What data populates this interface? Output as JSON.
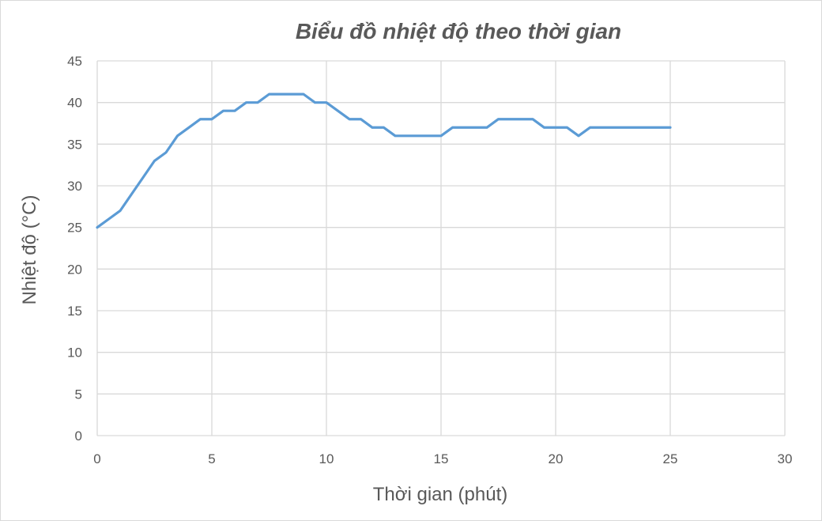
{
  "chart_data": {
    "type": "scatter",
    "title": "Biểu đồ nhiệt độ theo thời gian",
    "xlabel": "Thời gian (phút)",
    "ylabel": "Nhiệt độ (°C)",
    "xlim": [
      0,
      30
    ],
    "ylim": [
      0,
      45
    ],
    "x_ticks": [
      0,
      5,
      10,
      15,
      20,
      25,
      30
    ],
    "y_ticks": [
      0,
      5,
      10,
      15,
      20,
      25,
      30,
      35,
      40,
      45
    ],
    "grid": true,
    "legend": false,
    "line_style": "straight lines, no markers",
    "series_color": "#5b9bd5",
    "series": [
      {
        "x": [
          0,
          0.5,
          1,
          1.5,
          2,
          2.5,
          3,
          3.5,
          4,
          4.5,
          5,
          5.5,
          6,
          6.5,
          7,
          7.5,
          8,
          8.5,
          9,
          9.5,
          10,
          10.5,
          11,
          11.5,
          12,
          12.5,
          13,
          13.5,
          14,
          14.5,
          15,
          15.5,
          16,
          16.5,
          17,
          17.5,
          18,
          18.5,
          19,
          19.5,
          20,
          20.5,
          21,
          21.5,
          22,
          22.5,
          23,
          23.5,
          24,
          24.5,
          25
        ],
        "y": [
          25,
          26,
          27,
          29,
          31,
          33,
          34,
          36,
          37,
          38,
          38,
          39,
          39,
          40,
          40,
          41,
          41,
          41,
          41,
          40,
          40,
          39,
          38,
          38,
          37,
          37,
          36,
          36,
          36,
          36,
          36,
          37,
          37,
          37,
          37,
          38,
          38,
          38,
          38,
          37,
          37,
          37,
          36,
          37,
          37,
          37,
          37,
          37,
          37,
          37,
          37
        ]
      }
    ]
  }
}
